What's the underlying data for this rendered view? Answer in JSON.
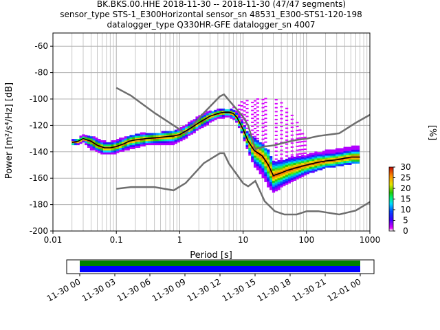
{
  "header": {
    "line1": "BK.BKS.00.HHE   2018-11-30 -- 2018-11-30  (47/47 segments)",
    "line2": "sensor_type STS-1_E300Horizontal sensor_sn 48531_E300-STS1-120-198",
    "line3": "datalogger_type Q330HR-GFE datalogger_sn 4007"
  },
  "colorbar": {
    "label": "[%]",
    "ticks": [
      "0",
      "5",
      "10",
      "15",
      "20",
      "25",
      "30"
    ],
    "range": [
      0,
      30
    ]
  },
  "timeline": {
    "ticks": [
      "11-30 00",
      "11-30 03",
      "11-30 06",
      "11-30 09",
      "11-30 12",
      "11-30 15",
      "11-30 18",
      "11-30 21",
      "12-01 00"
    ],
    "colors": [
      "#008000",
      "#0000ff"
    ]
  },
  "colors": {
    "noise_model": "#6e6e6e",
    "mean_line": "#000000",
    "grid": "#b0b0b0"
  },
  "chart_data": {
    "type": "heatmap",
    "xlabel": "Period [s]",
    "ylabel": "Power [m²/s⁴/Hz] [dB]",
    "xscale": "log",
    "xlim": [
      0.01,
      1000
    ],
    "ylim": [
      -200,
      -50
    ],
    "xtick_labels": [
      "0.01",
      "0.1",
      "1",
      "10",
      "100",
      "1000"
    ],
    "xticks": [
      0.01,
      0.1,
      1,
      10,
      100,
      1000
    ],
    "yticks": [
      -200,
      -180,
      -160,
      -140,
      -120,
      -100,
      -80,
      -60
    ],
    "grid": true,
    "series": [
      {
        "name": "mean",
        "x": [
          0.02,
          0.025,
          0.03,
          0.04,
          0.05,
          0.065,
          0.08,
          0.1,
          0.13,
          0.16,
          0.2,
          0.3,
          0.5,
          0.8,
          1.0,
          1.5,
          2.0,
          3.0,
          4.0,
          5.0,
          6.0,
          7.0,
          8.0,
          10.0,
          12.0,
          15.0,
          20.0,
          25.0,
          30.0,
          40.0,
          50.0,
          70.0,
          100.0,
          150.0,
          200.0,
          300.0,
          500.0,
          700.0
        ],
        "y": [
          -133,
          -132,
          -130,
          -132,
          -135,
          -137,
          -137,
          -136,
          -134,
          -132,
          -131,
          -130,
          -129,
          -128,
          -127,
          -122,
          -118,
          -113,
          -111,
          -110,
          -110,
          -111,
          -114,
          -123,
          -132,
          -139,
          -143,
          -150,
          -158,
          -156,
          -154,
          -152,
          -150,
          -148,
          -147,
          -146,
          -144,
          -144
        ]
      }
    ],
    "noise_models": [
      {
        "x": [
          0.1,
          0.17,
          0.4,
          0.8,
          1.24,
          2.4,
          4.3,
          5.0,
          6.0,
          10.0,
          12.0,
          15.6,
          21.9,
          31.6,
          45.0,
          70.0,
          101.0,
          154.0,
          328.0,
          600.0,
          1000.0
        ],
        "y": [
          -91.5,
          -97.4,
          -110.5,
          -120,
          -126,
          -110.5,
          -98,
          -96.5,
          -101,
          -113.5,
          -120,
          -138,
          -136,
          -135,
          -133,
          -131,
          -130,
          -128,
          -126,
          -118,
          -112
        ]
      },
      {
        "x": [
          0.1,
          0.17,
          0.4,
          0.8,
          1.24,
          2.4,
          4.3,
          5.0,
          6.0,
          10.0,
          12.0,
          15.6,
          21.9,
          31.6,
          45.0,
          70.0,
          101.0,
          154.0,
          328.0,
          600.0,
          1000.0
        ],
        "y": [
          -168,
          -166.7,
          -166.7,
          -169.2,
          -163.7,
          -148.6,
          -141.1,
          -141.1,
          -149,
          -163.8,
          -166.2,
          -162.1,
          -177.5,
          -185,
          -187.5,
          -187.5,
          -185,
          -185,
          -187.5,
          -184.5,
          -178
        ]
      }
    ],
    "histogram": {
      "core_band": {
        "x": [
          0.02,
          0.025,
          0.03,
          0.04,
          0.05,
          0.065,
          0.08,
          0.1,
          0.13,
          0.16,
          0.2,
          0.3,
          0.5,
          0.8,
          1.0,
          1.5,
          2.0,
          3.0,
          4.0,
          5.0,
          6.0,
          7.0,
          8.0,
          10.0,
          12.0,
          15.0,
          20.0,
          25.0,
          30.0,
          40.0,
          50.0,
          70.0,
          100.0,
          150.0,
          200.0,
          300.0,
          500.0,
          700.0
        ],
        "lower": [
          -134,
          -134,
          -131,
          -137,
          -139,
          -141,
          -141,
          -140,
          -138,
          -137,
          -136,
          -134,
          -134,
          -133,
          -131,
          -126,
          -122,
          -117,
          -114,
          -113,
          -113,
          -114,
          -117,
          -127,
          -139,
          -150,
          -157,
          -166,
          -170,
          -166,
          -163,
          -160,
          -156,
          -153,
          -151,
          -150,
          -148,
          -147
        ],
        "upper": [
          -131,
          -130,
          -127,
          -129,
          -131,
          -133,
          -133,
          -132,
          -130,
          -128,
          -127,
          -126,
          -126,
          -124,
          -123,
          -118,
          -114,
          -110,
          -108,
          -108,
          -108,
          -108,
          -110,
          -118,
          -126,
          -130,
          -135,
          -140,
          -148,
          -147,
          -145,
          -144,
          -143,
          -140,
          -140,
          -139,
          -137,
          -135
        ]
      },
      "outliers": {
        "x": [
          5.0,
          7.0,
          10.0,
          15.0,
          20.0,
          30.0,
          40.0,
          60.0,
          80.0,
          100.0
        ],
        "upper": [
          -108,
          -104,
          -102,
          -100,
          -98,
          -98,
          -100,
          -110,
          -122,
          -130
        ]
      }
    }
  }
}
